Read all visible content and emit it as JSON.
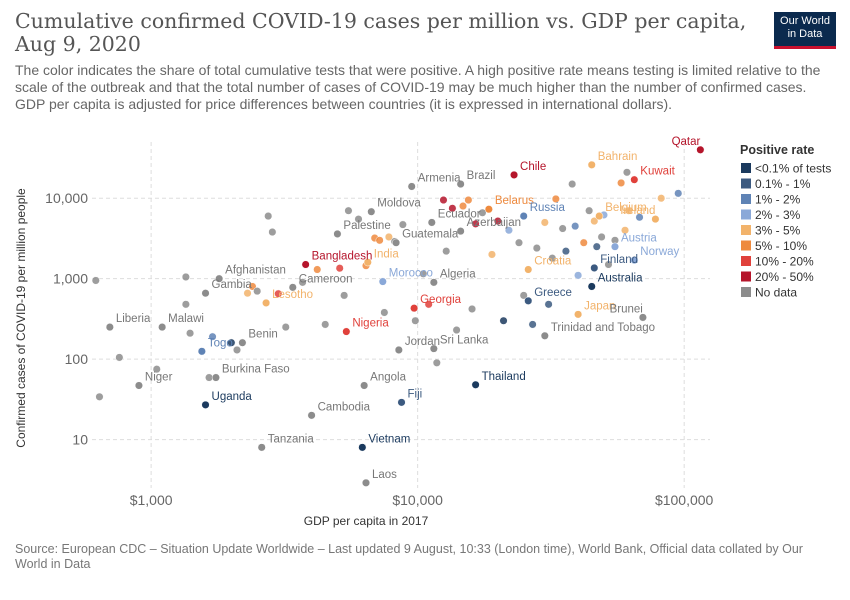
{
  "header": {
    "title": "Cumulative confirmed COVID-19 cases per million vs. GDP per capita, Aug 9, 2020",
    "subtitle": "The color indicates the share of total cumulative tests that were positive. A high positive rate means testing is limited relative to the scale of the outbreak and that the total number of cases of COVID-19 may be much higher than the number of confirmed cases.",
    "subtitle2": "GDP per capita is adjusted for price differences between countries (it is expressed in international dollars).",
    "logo_line1": "Our World",
    "logo_line2": "in Data"
  },
  "footer": {
    "source": "Source: European CDC – Situation Update Worldwide – Last updated 9 August, 10:33 (London time), World Bank, Official data collated by Our World in Data"
  },
  "chart_data": {
    "type": "scatter",
    "xlabel": "GDP per capita in 2017",
    "ylabel": "Confirmed cases of COVID-19 per million people",
    "x_scale": "log",
    "y_scale": "log",
    "xlim": [
      600,
      125000
    ],
    "ylim": [
      2.5,
      50000
    ],
    "x_ticks": [
      1000,
      10000,
      100000
    ],
    "x_tick_labels": [
      "$1,000",
      "$10,000",
      "$100,000"
    ],
    "y_ticks": [
      10,
      100,
      1000,
      10000
    ],
    "y_tick_labels": [
      "10",
      "100",
      "1,000",
      "10,000"
    ],
    "grid": "dashed",
    "legend": {
      "title": "Positive rate",
      "position": "right",
      "items": [
        {
          "label": "<0.1% of tests",
          "color": "#1b3a5e"
        },
        {
          "label": "0.1% - 1%",
          "color": "#3c5a80"
        },
        {
          "label": "1% - 2%",
          "color": "#5f83b5"
        },
        {
          "label": "2% - 3%",
          "color": "#8aa8d8"
        },
        {
          "label": "3% - 5%",
          "color": "#f2b36b"
        },
        {
          "label": "5% - 10%",
          "color": "#ee8a3e"
        },
        {
          "label": "10% - 20%",
          "color": "#e0413b"
        },
        {
          "label": "20% - 50%",
          "color": "#b5152b"
        },
        {
          "label": "No data",
          "color": "#8c8c8c"
        }
      ]
    },
    "labeled_points": [
      {
        "name": "Qatar",
        "x": 115000,
        "y": 40000,
        "cat": 7
      },
      {
        "name": "Chile",
        "x": 23000,
        "y": 19500,
        "cat": 7
      },
      {
        "name": "Bahrain",
        "x": 45000,
        "y": 26000,
        "cat": 4
      },
      {
        "name": "Kuwait",
        "x": 65000,
        "y": 17000,
        "cat": 6
      },
      {
        "name": "Armenia",
        "x": 9500,
        "y": 14000,
        "cat": 8
      },
      {
        "name": "Brazil",
        "x": 14500,
        "y": 15000,
        "cat": 8
      },
      {
        "name": "Belarus",
        "x": 18500,
        "y": 7300,
        "cat": 5
      },
      {
        "name": "Russia",
        "x": 25000,
        "y": 6000,
        "cat": 2
      },
      {
        "name": "Belgium",
        "x": 48000,
        "y": 6000,
        "cat": 4
      },
      {
        "name": "Ireland",
        "x": 78000,
        "y": 5500,
        "cat": 4
      },
      {
        "name": "Moldova",
        "x": 6700,
        "y": 6800,
        "cat": 8
      },
      {
        "name": "Ecuador",
        "x": 11300,
        "y": 5000,
        "cat": 8
      },
      {
        "name": "Palestine",
        "x": 5000,
        "y": 3600,
        "cat": 8
      },
      {
        "name": "Guatemala",
        "x": 8300,
        "y": 2800,
        "cat": 8
      },
      {
        "name": "Azerbaijan",
        "x": 14500,
        "y": 3900,
        "cat": 8
      },
      {
        "name": "Austria",
        "x": 55000,
        "y": 2500,
        "cat": 3
      },
      {
        "name": "Norway",
        "x": 65000,
        "y": 1700,
        "cat": 3
      },
      {
        "name": "Bangladesh",
        "x": 3800,
        "y": 1500,
        "cat": 7
      },
      {
        "name": "India",
        "x": 6500,
        "y": 1600,
        "cat": 4
      },
      {
        "name": "Croatia",
        "x": 26000,
        "y": 1300,
        "cat": 4
      },
      {
        "name": "Finland",
        "x": 46000,
        "y": 1360,
        "cat": 1
      },
      {
        "name": "Afghanistan",
        "x": 1800,
        "y": 1000,
        "cat": 8
      },
      {
        "name": "Morocco",
        "x": 7400,
        "y": 920,
        "cat": 3
      },
      {
        "name": "Cameroon",
        "x": 3400,
        "y": 780,
        "cat": 8
      },
      {
        "name": "Algeria",
        "x": 11500,
        "y": 900,
        "cat": 8
      },
      {
        "name": "Australia",
        "x": 45000,
        "y": 800,
        "cat": 0
      },
      {
        "name": "Gambia",
        "x": 1600,
        "y": 660,
        "cat": 8
      },
      {
        "name": "Lesotho",
        "x": 2700,
        "y": 500,
        "cat": 4
      },
      {
        "name": "Greece",
        "x": 26000,
        "y": 530,
        "cat": 1
      },
      {
        "name": "Liberia",
        "x": 700,
        "y": 250,
        "cat": 8
      },
      {
        "name": "Malawi",
        "x": 1100,
        "y": 250,
        "cat": 8
      },
      {
        "name": "Georgia",
        "x": 9700,
        "y": 430,
        "cat": 6
      },
      {
        "name": "Japan",
        "x": 40000,
        "y": 360,
        "cat": 4
      },
      {
        "name": "Brunei",
        "x": 70000,
        "y": 330,
        "cat": 8
      },
      {
        "name": "Nigeria",
        "x": 5400,
        "y": 220,
        "cat": 6
      },
      {
        "name": "Benin",
        "x": 2200,
        "y": 160,
        "cat": 8
      },
      {
        "name": "Trinidad and Tobago",
        "x": 30000,
        "y": 195,
        "cat": 8
      },
      {
        "name": "Togo",
        "x": 1550,
        "y": 125,
        "cat": 2
      },
      {
        "name": "Jordan",
        "x": 8500,
        "y": 130,
        "cat": 8
      },
      {
        "name": "Sri Lanka",
        "x": 11500,
        "y": 135,
        "cat": 8
      },
      {
        "name": "Niger",
        "x": 900,
        "y": 47,
        "cat": 8
      },
      {
        "name": "Burkina Faso",
        "x": 1750,
        "y": 59,
        "cat": 8
      },
      {
        "name": "Thailand",
        "x": 16500,
        "y": 48,
        "cat": 0
      },
      {
        "name": "Angola",
        "x": 6300,
        "y": 47,
        "cat": 8
      },
      {
        "name": "Uganda",
        "x": 1600,
        "y": 27,
        "cat": 0
      },
      {
        "name": "Fiji",
        "x": 8700,
        "y": 29,
        "cat": 1
      },
      {
        "name": "Cambodia",
        "x": 4000,
        "y": 20,
        "cat": 8
      },
      {
        "name": "Tanzania",
        "x": 2600,
        "y": 8,
        "cat": 8
      },
      {
        "name": "Vietnam",
        "x": 6200,
        "y": 8,
        "cat": 0
      },
      {
        "name": "Laos",
        "x": 6400,
        "y": 2.9,
        "cat": 8
      }
    ],
    "other_points": [
      {
        "x": 620,
        "y": 950,
        "cat": 8
      },
      {
        "x": 640,
        "y": 34,
        "cat": 8
      },
      {
        "x": 760,
        "y": 105,
        "cat": 8
      },
      {
        "x": 1050,
        "y": 75,
        "cat": 8
      },
      {
        "x": 1350,
        "y": 1050,
        "cat": 8
      },
      {
        "x": 1350,
        "y": 480,
        "cat": 8
      },
      {
        "x": 1400,
        "y": 210,
        "cat": 8
      },
      {
        "x": 1650,
        "y": 59,
        "cat": 8
      },
      {
        "x": 1700,
        "y": 190,
        "cat": 2
      },
      {
        "x": 2000,
        "y": 160,
        "cat": 0
      },
      {
        "x": 2100,
        "y": 130,
        "cat": 8
      },
      {
        "x": 2300,
        "y": 660,
        "cat": 4
      },
      {
        "x": 2400,
        "y": 800,
        "cat": 5
      },
      {
        "x": 2500,
        "y": 700,
        "cat": 8
      },
      {
        "x": 2750,
        "y": 6000,
        "cat": 8
      },
      {
        "x": 2850,
        "y": 3800,
        "cat": 8
      },
      {
        "x": 3000,
        "y": 650,
        "cat": 6
      },
      {
        "x": 3200,
        "y": 250,
        "cat": 8
      },
      {
        "x": 3700,
        "y": 900,
        "cat": 8
      },
      {
        "x": 4200,
        "y": 1300,
        "cat": 5
      },
      {
        "x": 4500,
        "y": 270,
        "cat": 8
      },
      {
        "x": 5100,
        "y": 1350,
        "cat": 6
      },
      {
        "x": 5300,
        "y": 620,
        "cat": 8
      },
      {
        "x": 5500,
        "y": 7000,
        "cat": 8
      },
      {
        "x": 6000,
        "y": 5500,
        "cat": 8
      },
      {
        "x": 6400,
        "y": 1450,
        "cat": 5
      },
      {
        "x": 6900,
        "y": 3200,
        "cat": 5
      },
      {
        "x": 7200,
        "y": 3000,
        "cat": 5
      },
      {
        "x": 7500,
        "y": 380,
        "cat": 8
      },
      {
        "x": 7800,
        "y": 3300,
        "cat": 4
      },
      {
        "x": 8200,
        "y": 2900,
        "cat": 8
      },
      {
        "x": 8800,
        "y": 4700,
        "cat": 8
      },
      {
        "x": 9800,
        "y": 300,
        "cat": 8
      },
      {
        "x": 10500,
        "y": 1150,
        "cat": 8
      },
      {
        "x": 11000,
        "y": 480,
        "cat": 6
      },
      {
        "x": 11800,
        "y": 90,
        "cat": 8
      },
      {
        "x": 12500,
        "y": 9500,
        "cat": 7
      },
      {
        "x": 12800,
        "y": 2200,
        "cat": 8
      },
      {
        "x": 13500,
        "y": 7500,
        "cat": 7
      },
      {
        "x": 14000,
        "y": 230,
        "cat": 8
      },
      {
        "x": 14800,
        "y": 8000,
        "cat": 5
      },
      {
        "x": 15500,
        "y": 9500,
        "cat": 5
      },
      {
        "x": 16000,
        "y": 420,
        "cat": 8
      },
      {
        "x": 16500,
        "y": 4800,
        "cat": 7
      },
      {
        "x": 17500,
        "y": 6600,
        "cat": 8
      },
      {
        "x": 19000,
        "y": 2000,
        "cat": 4
      },
      {
        "x": 20000,
        "y": 5200,
        "cat": 7
      },
      {
        "x": 21000,
        "y": 300,
        "cat": 0
      },
      {
        "x": 22000,
        "y": 4000,
        "cat": 3
      },
      {
        "x": 24000,
        "y": 2800,
        "cat": 8
      },
      {
        "x": 25000,
        "y": 620,
        "cat": 8
      },
      {
        "x": 27000,
        "y": 270,
        "cat": 1
      },
      {
        "x": 28000,
        "y": 2400,
        "cat": 8
      },
      {
        "x": 30000,
        "y": 5000,
        "cat": 4
      },
      {
        "x": 31000,
        "y": 480,
        "cat": 1
      },
      {
        "x": 32000,
        "y": 1800,
        "cat": 8
      },
      {
        "x": 33000,
        "y": 9800,
        "cat": 5
      },
      {
        "x": 35000,
        "y": 4200,
        "cat": 8
      },
      {
        "x": 36000,
        "y": 2200,
        "cat": 1
      },
      {
        "x": 38000,
        "y": 15000,
        "cat": 8
      },
      {
        "x": 39000,
        "y": 4500,
        "cat": 2
      },
      {
        "x": 40000,
        "y": 1100,
        "cat": 3
      },
      {
        "x": 42000,
        "y": 2800,
        "cat": 5
      },
      {
        "x": 44000,
        "y": 7000,
        "cat": 8
      },
      {
        "x": 46000,
        "y": 5200,
        "cat": 4
      },
      {
        "x": 47000,
        "y": 2500,
        "cat": 1
      },
      {
        "x": 49000,
        "y": 3300,
        "cat": 8
      },
      {
        "x": 50000,
        "y": 6200,
        "cat": 3
      },
      {
        "x": 52000,
        "y": 1500,
        "cat": 8
      },
      {
        "x": 55000,
        "y": 3000,
        "cat": 8
      },
      {
        "x": 58000,
        "y": 15500,
        "cat": 5
      },
      {
        "x": 60000,
        "y": 4000,
        "cat": 4
      },
      {
        "x": 61000,
        "y": 21000,
        "cat": 8
      },
      {
        "x": 62000,
        "y": 7000,
        "cat": 4
      },
      {
        "x": 68000,
        "y": 5800,
        "cat": 2
      },
      {
        "x": 82000,
        "y": 10000,
        "cat": 4
      },
      {
        "x": 95000,
        "y": 11500,
        "cat": 2
      }
    ]
  }
}
